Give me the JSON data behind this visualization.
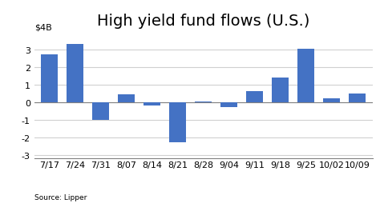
{
  "title": "High yield fund flows (U.S.)",
  "ylabel_label": "$4B",
  "source": "Source: Lipper",
  "categories": [
    "7/17",
    "7/24",
    "7/31",
    "8/07",
    "8/14",
    "8/21",
    "8/28",
    "9/04",
    "9/11",
    "9/18",
    "9/25",
    "10/02",
    "10/09"
  ],
  "values": [
    2.7,
    3.3,
    -1.0,
    0.45,
    -0.2,
    -2.3,
    0.05,
    -0.3,
    0.6,
    1.4,
    3.05,
    0.2,
    0.5
  ],
  "bar_color": "#4472C4",
  "ylim": [
    -3.2,
    4.0
  ],
  "yticks": [
    -3,
    -2,
    -1,
    0,
    1,
    2,
    3
  ],
  "background_color": "#ffffff",
  "title_fontsize": 14,
  "tick_fontsize": 8,
  "source_fontsize": 6.5
}
